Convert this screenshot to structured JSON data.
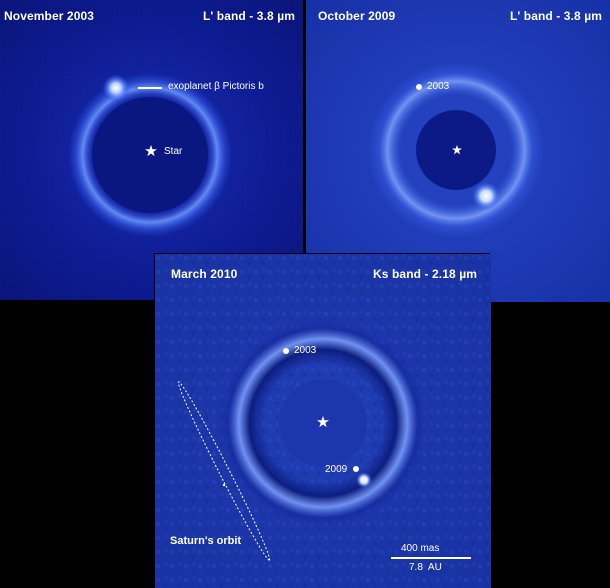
{
  "panels": [
    {
      "date": "November 2003",
      "band": "L' band - 3.8 µm",
      "annotations": {
        "planet": "exoplanet β Pictoris b",
        "star": "Star"
      },
      "colors": {
        "background": "#0c1a8e",
        "mask": "#0a1780"
      }
    },
    {
      "date": "October 2009",
      "band": "L' band - 3.8 µm",
      "annotations": {
        "epoch": "2003"
      },
      "colors": {
        "background": "#1e3ab8",
        "mask": "#0b1a86"
      }
    },
    {
      "date": "March 2010",
      "band": "Ks band - 2.18 µm",
      "annotations": {
        "epoch_a": "2003",
        "epoch_b": "2009",
        "orbit": "Saturn's orbit"
      },
      "scale_bar": {
        "top": "400 mas",
        "bottom": "7.8  AU"
      },
      "colors": {
        "background": "#1b34a6",
        "mask": "#1e36ad"
      }
    }
  ]
}
